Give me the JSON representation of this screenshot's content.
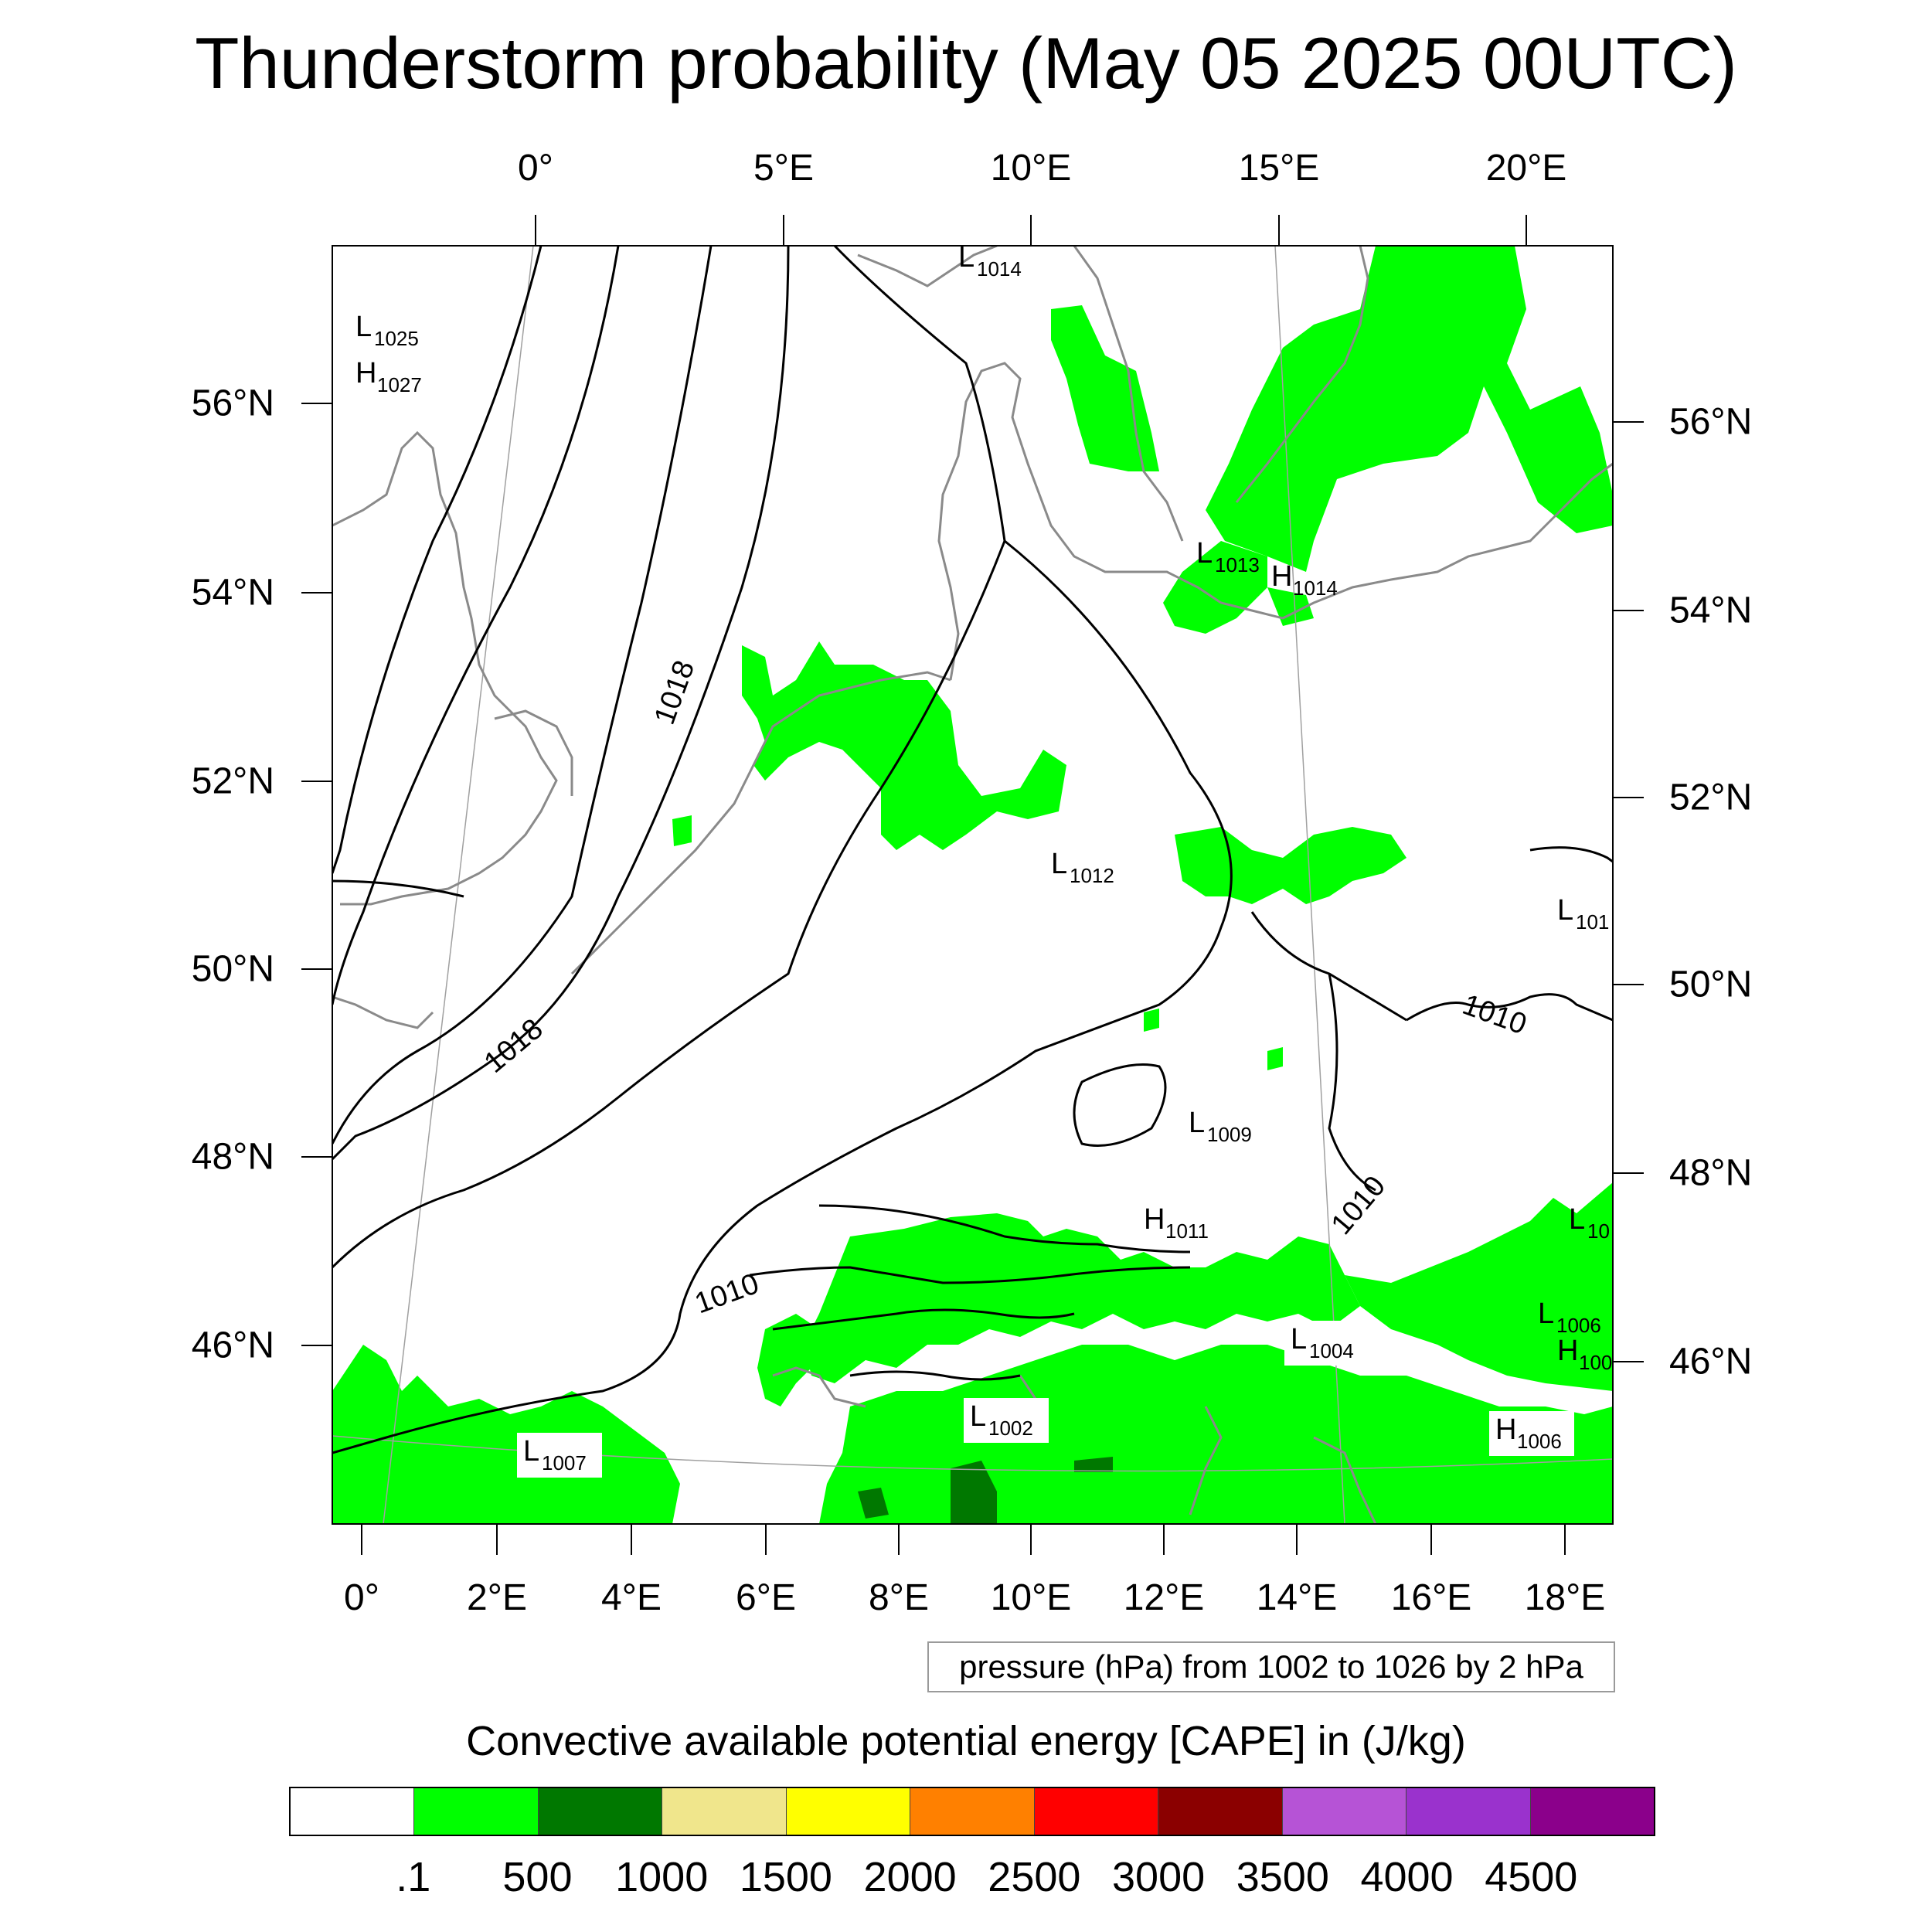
{
  "title": "Thunderstorm probability (May 05 2025 00UTC)",
  "axes": {
    "top_lon_labels": [
      "0°",
      "5°E",
      "10°E",
      "15°E",
      "20°E"
    ],
    "bottom_lon_labels": [
      "0°",
      "2°E",
      "4°E",
      "6°E",
      "8°E",
      "10°E",
      "12°E",
      "14°E",
      "16°E",
      "18°E"
    ],
    "left_lat_labels": [
      "56°N",
      "54°N",
      "52°N",
      "50°N",
      "48°N",
      "46°N"
    ],
    "right_lat_labels": [
      "56°N",
      "54°N",
      "52°N",
      "50°N",
      "48°N",
      "46°N"
    ]
  },
  "pressure_note": "pressure (hPa) from 1002 to 1026 by 2 hPa",
  "contour_labels": [
    "1018",
    "1018",
    "1010",
    "1010",
    "1010"
  ],
  "pressure_centers": [
    {
      "type": "L",
      "value": "1014"
    },
    {
      "type": "L",
      "value": "1025"
    },
    {
      "type": "H",
      "value": "1027"
    },
    {
      "type": "L",
      "value": "1013"
    },
    {
      "type": "H",
      "value": "1014"
    },
    {
      "type": "L",
      "value": "1012"
    },
    {
      "type": "L",
      "value": "101"
    },
    {
      "type": "L",
      "value": "1009"
    },
    {
      "type": "H",
      "value": "1011"
    },
    {
      "type": "L",
      "value": "10"
    },
    {
      "type": "L",
      "value": "1006"
    },
    {
      "type": "H",
      "value": "100"
    },
    {
      "type": "L",
      "value": "1004"
    },
    {
      "type": "L",
      "value": "1002"
    },
    {
      "type": "L",
      "value": "1007"
    },
    {
      "type": "H",
      "value": "1006"
    }
  ],
  "colorbar": {
    "title": "Convective available potential energy [CAPE] in (J/kg)",
    "colors": [
      "#ffffff",
      "#00ff00",
      "#007800",
      "#f0e68c",
      "#ffff00",
      "#ff8000",
      "#ff0000",
      "#8b0000",
      "#b653d6",
      "#9a32cd",
      "#8b008b"
    ],
    "labels": [
      ".1",
      "500",
      "1000",
      "1500",
      "2000",
      "2500",
      "3000",
      "3500",
      "4000",
      "4500"
    ]
  },
  "colors": {
    "cape_low": "#00ff00",
    "cape_mid": "#007800",
    "coastline": "#8a8a8a",
    "isobar": "#000000"
  }
}
